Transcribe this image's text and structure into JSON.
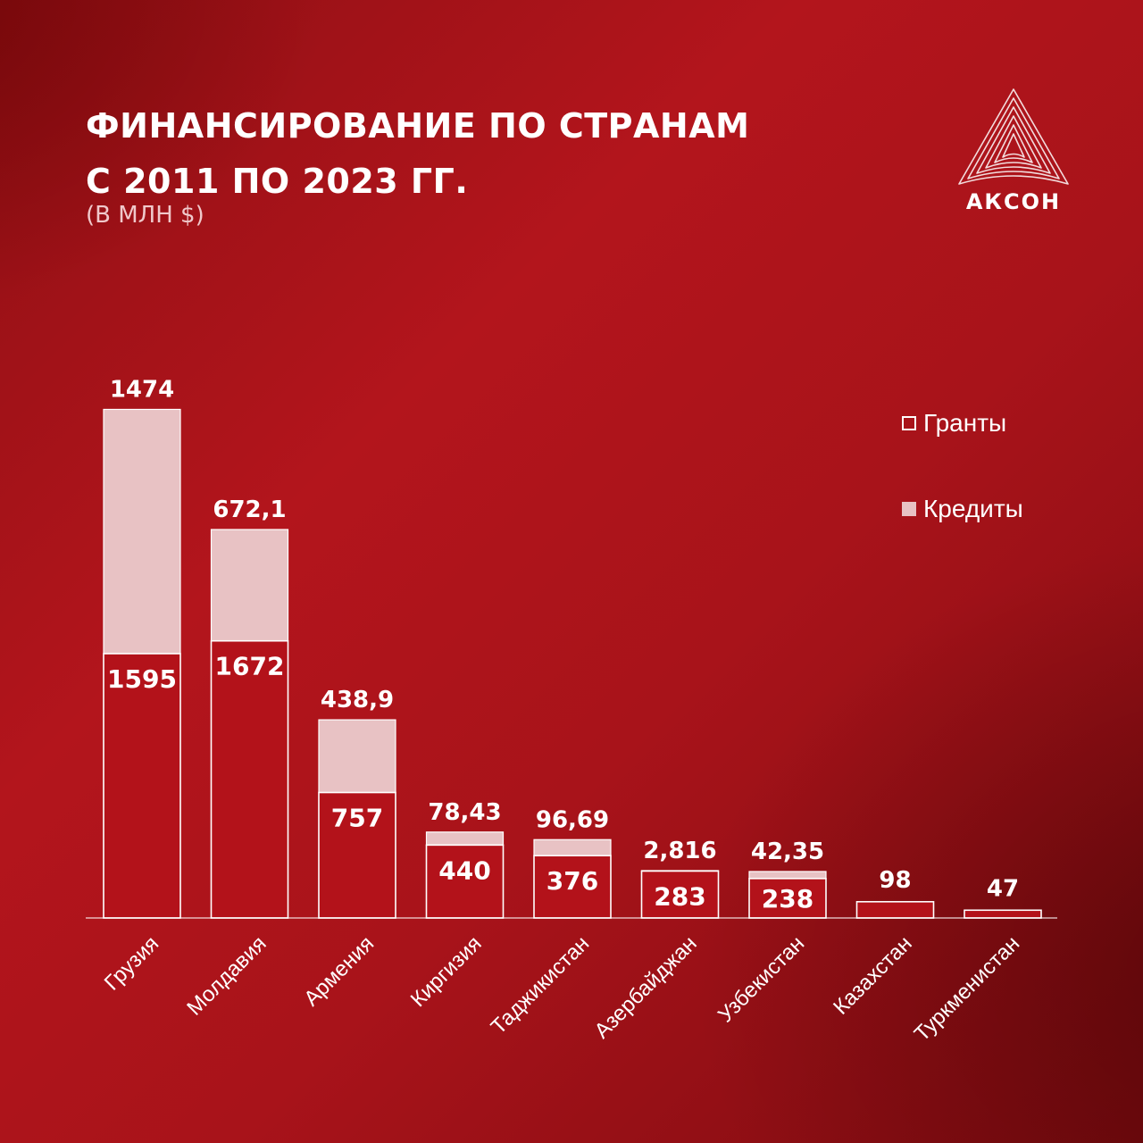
{
  "header": {
    "title_line1": "ФИНАНСИРОВАНИЕ ПО СТРАНАМ",
    "title_line2": "С 2011 ПО 2023 ГГ.",
    "subtitle": "(В МЛН $)"
  },
  "logo": {
    "text": "АКСОН",
    "icon": "akson-triangle-logo"
  },
  "legend": {
    "items": [
      {
        "label": "Гранты",
        "icon": "outline-square"
      },
      {
        "label": "Кредиты",
        "icon": "filled-square"
      }
    ]
  },
  "colors": {
    "grants_fill": "#b3121a",
    "grants_stroke": "#ffffff",
    "credits_fill": "#e8c2c4",
    "background": "#a8131a"
  },
  "chart_data": {
    "type": "bar",
    "stacked": true,
    "title": "ФИНАНСИРОВАНИЕ ПО СТРАНАМ С 2011 ПО 2023 ГГ.",
    "subtitle": "(В МЛН $)",
    "categories": [
      "Грузия",
      "Молдавия",
      "Армения",
      "Киргизия",
      "Таджикистан",
      "Азербайджан",
      "Узбекистан",
      "Казахстан",
      "Туркменистан"
    ],
    "series": [
      {
        "name": "Гранты",
        "values": [
          1595,
          1672,
          757,
          440,
          376,
          283,
          238,
          98,
          47
        ],
        "labels": [
          "1595",
          "1672",
          "757",
          "440",
          "376",
          "283",
          "238",
          "98",
          "47"
        ]
      },
      {
        "name": "Кредиты",
        "values": [
          1474,
          672.1,
          438.9,
          78.43,
          96.69,
          2.816,
          42.35,
          0,
          0
        ],
        "labels": [
          "1474",
          "672,1",
          "438,9",
          "78,43",
          "96,69",
          "2,816",
          "42,35",
          "",
          ""
        ]
      }
    ],
    "legend_position": "top-right",
    "grid": false,
    "xlabel": "",
    "ylabel": ""
  }
}
